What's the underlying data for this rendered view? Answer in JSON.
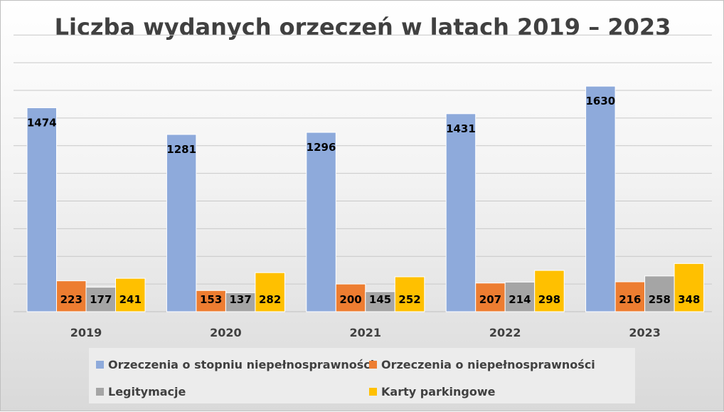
{
  "chart_data": {
    "type": "bar",
    "title": "Liczba wydanych orzeczeń w latach 2019 – 2023",
    "categories": [
      "2019",
      "2020",
      "2021",
      "2022",
      "2023"
    ],
    "series": [
      {
        "name": "Orzeczenia o stopniu niepełnosprawności",
        "color": "#8eaadb",
        "values": [
          1474,
          1281,
          1296,
          1431,
          1630
        ]
      },
      {
        "name": "Orzeczenia o niepełnosprawności",
        "color": "#ed7d31",
        "values": [
          223,
          153,
          200,
          207,
          216
        ]
      },
      {
        "name": "Legitymacje",
        "color": "#a5a5a5",
        "values": [
          177,
          137,
          145,
          214,
          258
        ]
      },
      {
        "name": "Karty parkingowe",
        "color": "#ffc000",
        "values": [
          241,
          282,
          252,
          298,
          348
        ]
      }
    ],
    "ylim": [
      0,
      2000
    ],
    "ytick_step": 200,
    "grid": true,
    "legend_position": "bottom"
  }
}
